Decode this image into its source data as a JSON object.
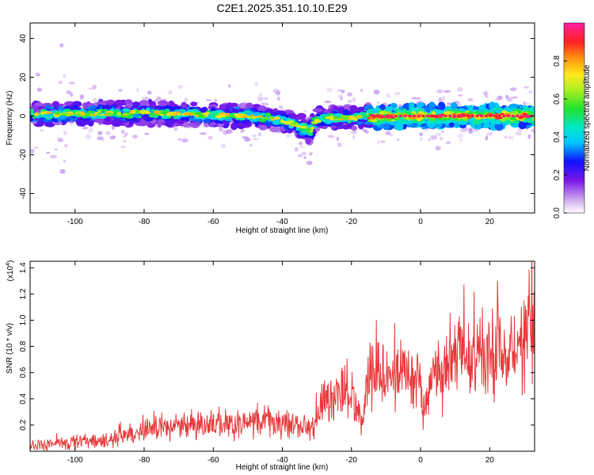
{
  "figure_title": "C2E1.2025.351.10.10.E29",
  "chart_data": [
    {
      "type": "heatmap",
      "title": "C2E1.2025.351.10.10.E29",
      "xlabel": "Height of straight line (km)",
      "ylabel": "Frequency (Hz)",
      "xlim": [
        -113,
        33
      ],
      "ylim": [
        -50,
        48
      ],
      "xticks": [
        -100,
        -80,
        -60,
        -40,
        -20,
        0,
        20
      ],
      "yticks": [
        -40,
        -20,
        0,
        20,
        40
      ],
      "xtick_labels": [
        "-100",
        "-80",
        "-60",
        "-40",
        "-20",
        "0",
        "20"
      ],
      "ytick_labels": [
        "-40",
        "-20",
        "0",
        "20",
        "40"
      ],
      "ridge": {
        "x": [
          -110,
          -100,
          -90,
          -80,
          -70,
          -60,
          -50,
          -45,
          -40,
          -37,
          -34,
          -32,
          -30,
          -25,
          -20,
          -10,
          0,
          10,
          20,
          32
        ],
        "y": [
          1,
          1,
          1.5,
          1.5,
          1,
          0.5,
          0,
          -1,
          -2,
          -4,
          -6,
          -8,
          -2,
          -1,
          -1,
          0,
          0,
          0,
          0,
          0
        ]
      },
      "colorbar": {
        "label": "Normalized spectral amplitude",
        "range": [
          0.0,
          1.0
        ],
        "ticks": [
          0.0,
          0.2,
          0.4,
          0.6,
          0.8
        ],
        "tick_labels": [
          "0.0",
          "0.2",
          "0.4",
          "0.6",
          "0.8"
        ]
      }
    },
    {
      "type": "line",
      "xlabel": "Height of straight line (km)",
      "ylabel": "SNR (10 * v/v)",
      "y_multiplier": "(x10",
      "y_multiplier_exp": "4",
      "y_multiplier_close": ")",
      "xlim": [
        -113,
        33
      ],
      "ylim": [
        0,
        14500
      ],
      "xticks": [
        -100,
        -80,
        -60,
        -40,
        -20,
        0,
        20
      ],
      "yticks": [
        2000,
        4000,
        6000,
        8000,
        10000,
        12000,
        14000
      ],
      "xtick_labels": [
        "-100",
        "-80",
        "-60",
        "-40",
        "-20",
        "0",
        "20"
      ],
      "ytick_labels": [
        "0.2",
        "0.4",
        "0.6",
        "0.8",
        "1.0",
        "1.2",
        "1.4"
      ],
      "color": "#e8393b",
      "series": [
        {
          "name": "SNR",
          "x": [
            -113,
            -108,
            -105,
            -100,
            -95,
            -90,
            -85,
            -80,
            -75,
            -70,
            -65,
            -60,
            -55,
            -50,
            -45,
            -40,
            -35,
            -31,
            -29,
            -27,
            -25,
            -22,
            -19,
            -17,
            -15,
            -12,
            -10,
            -5,
            0,
            1,
            3,
            5,
            10,
            15,
            20,
            25,
            28,
            30,
            32
          ],
          "y": [
            400,
            500,
            600,
            700,
            800,
            900,
            1200,
            1500,
            1800,
            1900,
            2000,
            2000,
            2100,
            2200,
            2300,
            2200,
            2000,
            1800,
            3500,
            4000,
            4200,
            4500,
            3800,
            2200,
            5500,
            5800,
            5500,
            6000,
            5000,
            3200,
            5500,
            6000,
            6500,
            7000,
            7500,
            8000,
            8500,
            9000,
            9500
          ]
        }
      ]
    }
  ]
}
